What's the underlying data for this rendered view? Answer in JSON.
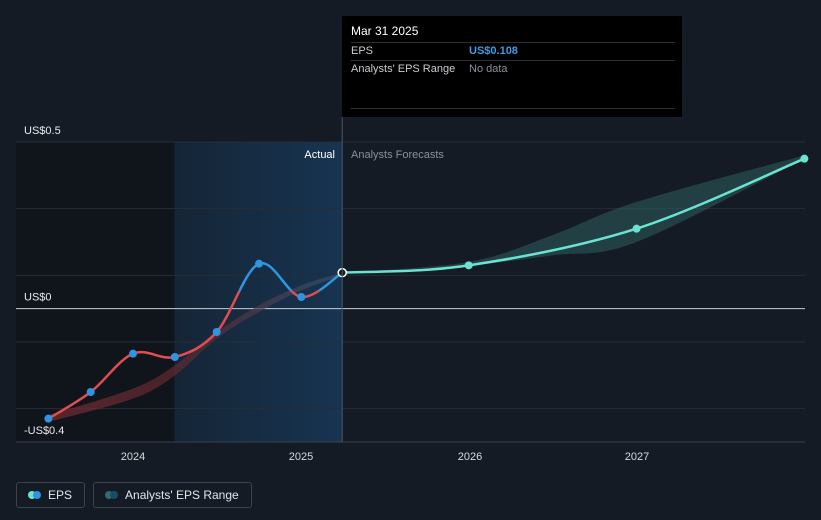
{
  "tooltip": {
    "title": "Mar 31 2025",
    "rows": [
      {
        "key": "EPS",
        "value": "US$0.108"
      },
      {
        "key": "Analysts' EPS Range",
        "value": "No data"
      }
    ]
  },
  "labels": {
    "actual": "Actual",
    "forecast": "Analysts Forecasts"
  },
  "legend": [
    {
      "label": "EPS"
    },
    {
      "label": "Analysts' EPS Range"
    }
  ],
  "colors": {
    "background": "#151b24",
    "eps_negative": "#e04d52",
    "eps_positive": "#2f95e0",
    "forecast": "#6be3d3",
    "range_band": "#2c5a5a",
    "actual_shade": "#173049",
    "tooltip_eps": "#3e9be6"
  },
  "chart_data": {
    "type": "line",
    "x_ticks": [
      "2024",
      "2025",
      "2026",
      "2027"
    ],
    "y_ticks": [
      {
        "value": 0.5,
        "label": "US$0.5"
      },
      {
        "value": 0,
        "label": "US$0"
      },
      {
        "value": -0.4,
        "label": "-US$0.4"
      }
    ],
    "ylim": [
      -0.4,
      0.5
    ],
    "xlim": [
      "2023-07-01",
      "2027-12-31"
    ],
    "grid": true,
    "divider_date": "2025-03-31",
    "shade_start_date": "2024-04-01",
    "series": [
      {
        "name": "EPS",
        "points": [
          {
            "date": "2023-07-01",
            "value": -0.33
          },
          {
            "date": "2023-10-01",
            "value": -0.25
          },
          {
            "date": "2024-01-01",
            "value": -0.135
          },
          {
            "date": "2024-04-01",
            "value": -0.145
          },
          {
            "date": "2024-07-01",
            "value": -0.07
          },
          {
            "date": "2024-10-01",
            "value": 0.135
          },
          {
            "date": "2025-01-01",
            "value": 0.035
          },
          {
            "date": "2025-03-31",
            "value": 0.108
          }
        ]
      },
      {
        "name": "Forecast",
        "points": [
          {
            "date": "2025-03-31",
            "value": 0.108
          },
          {
            "date": "2025-12-31",
            "value": 0.13
          },
          {
            "date": "2026-12-31",
            "value": 0.24
          },
          {
            "date": "2027-12-31",
            "value": 0.45
          }
        ]
      }
    ],
    "past_range": {
      "dates": [
        "2023-07-01",
        "2024-01-01",
        "2024-04-01",
        "2024-07-01",
        "2024-10-01",
        "2025-01-01",
        "2025-03-31"
      ],
      "low": [
        -0.34,
        -0.27,
        -0.2,
        -0.09,
        -0.01,
        0.055,
        0.1
      ],
      "high": [
        -0.32,
        -0.24,
        -0.17,
        -0.07,
        0.01,
        0.07,
        0.108
      ]
    },
    "forecast_range": {
      "dates": [
        "2025-03-31",
        "2025-12-31",
        "2026-06-30",
        "2026-12-31",
        "2027-12-31"
      ],
      "low": [
        0.108,
        0.13,
        0.16,
        0.2,
        0.45
      ],
      "high": [
        0.108,
        0.14,
        0.22,
        0.32,
        0.46
      ]
    }
  }
}
